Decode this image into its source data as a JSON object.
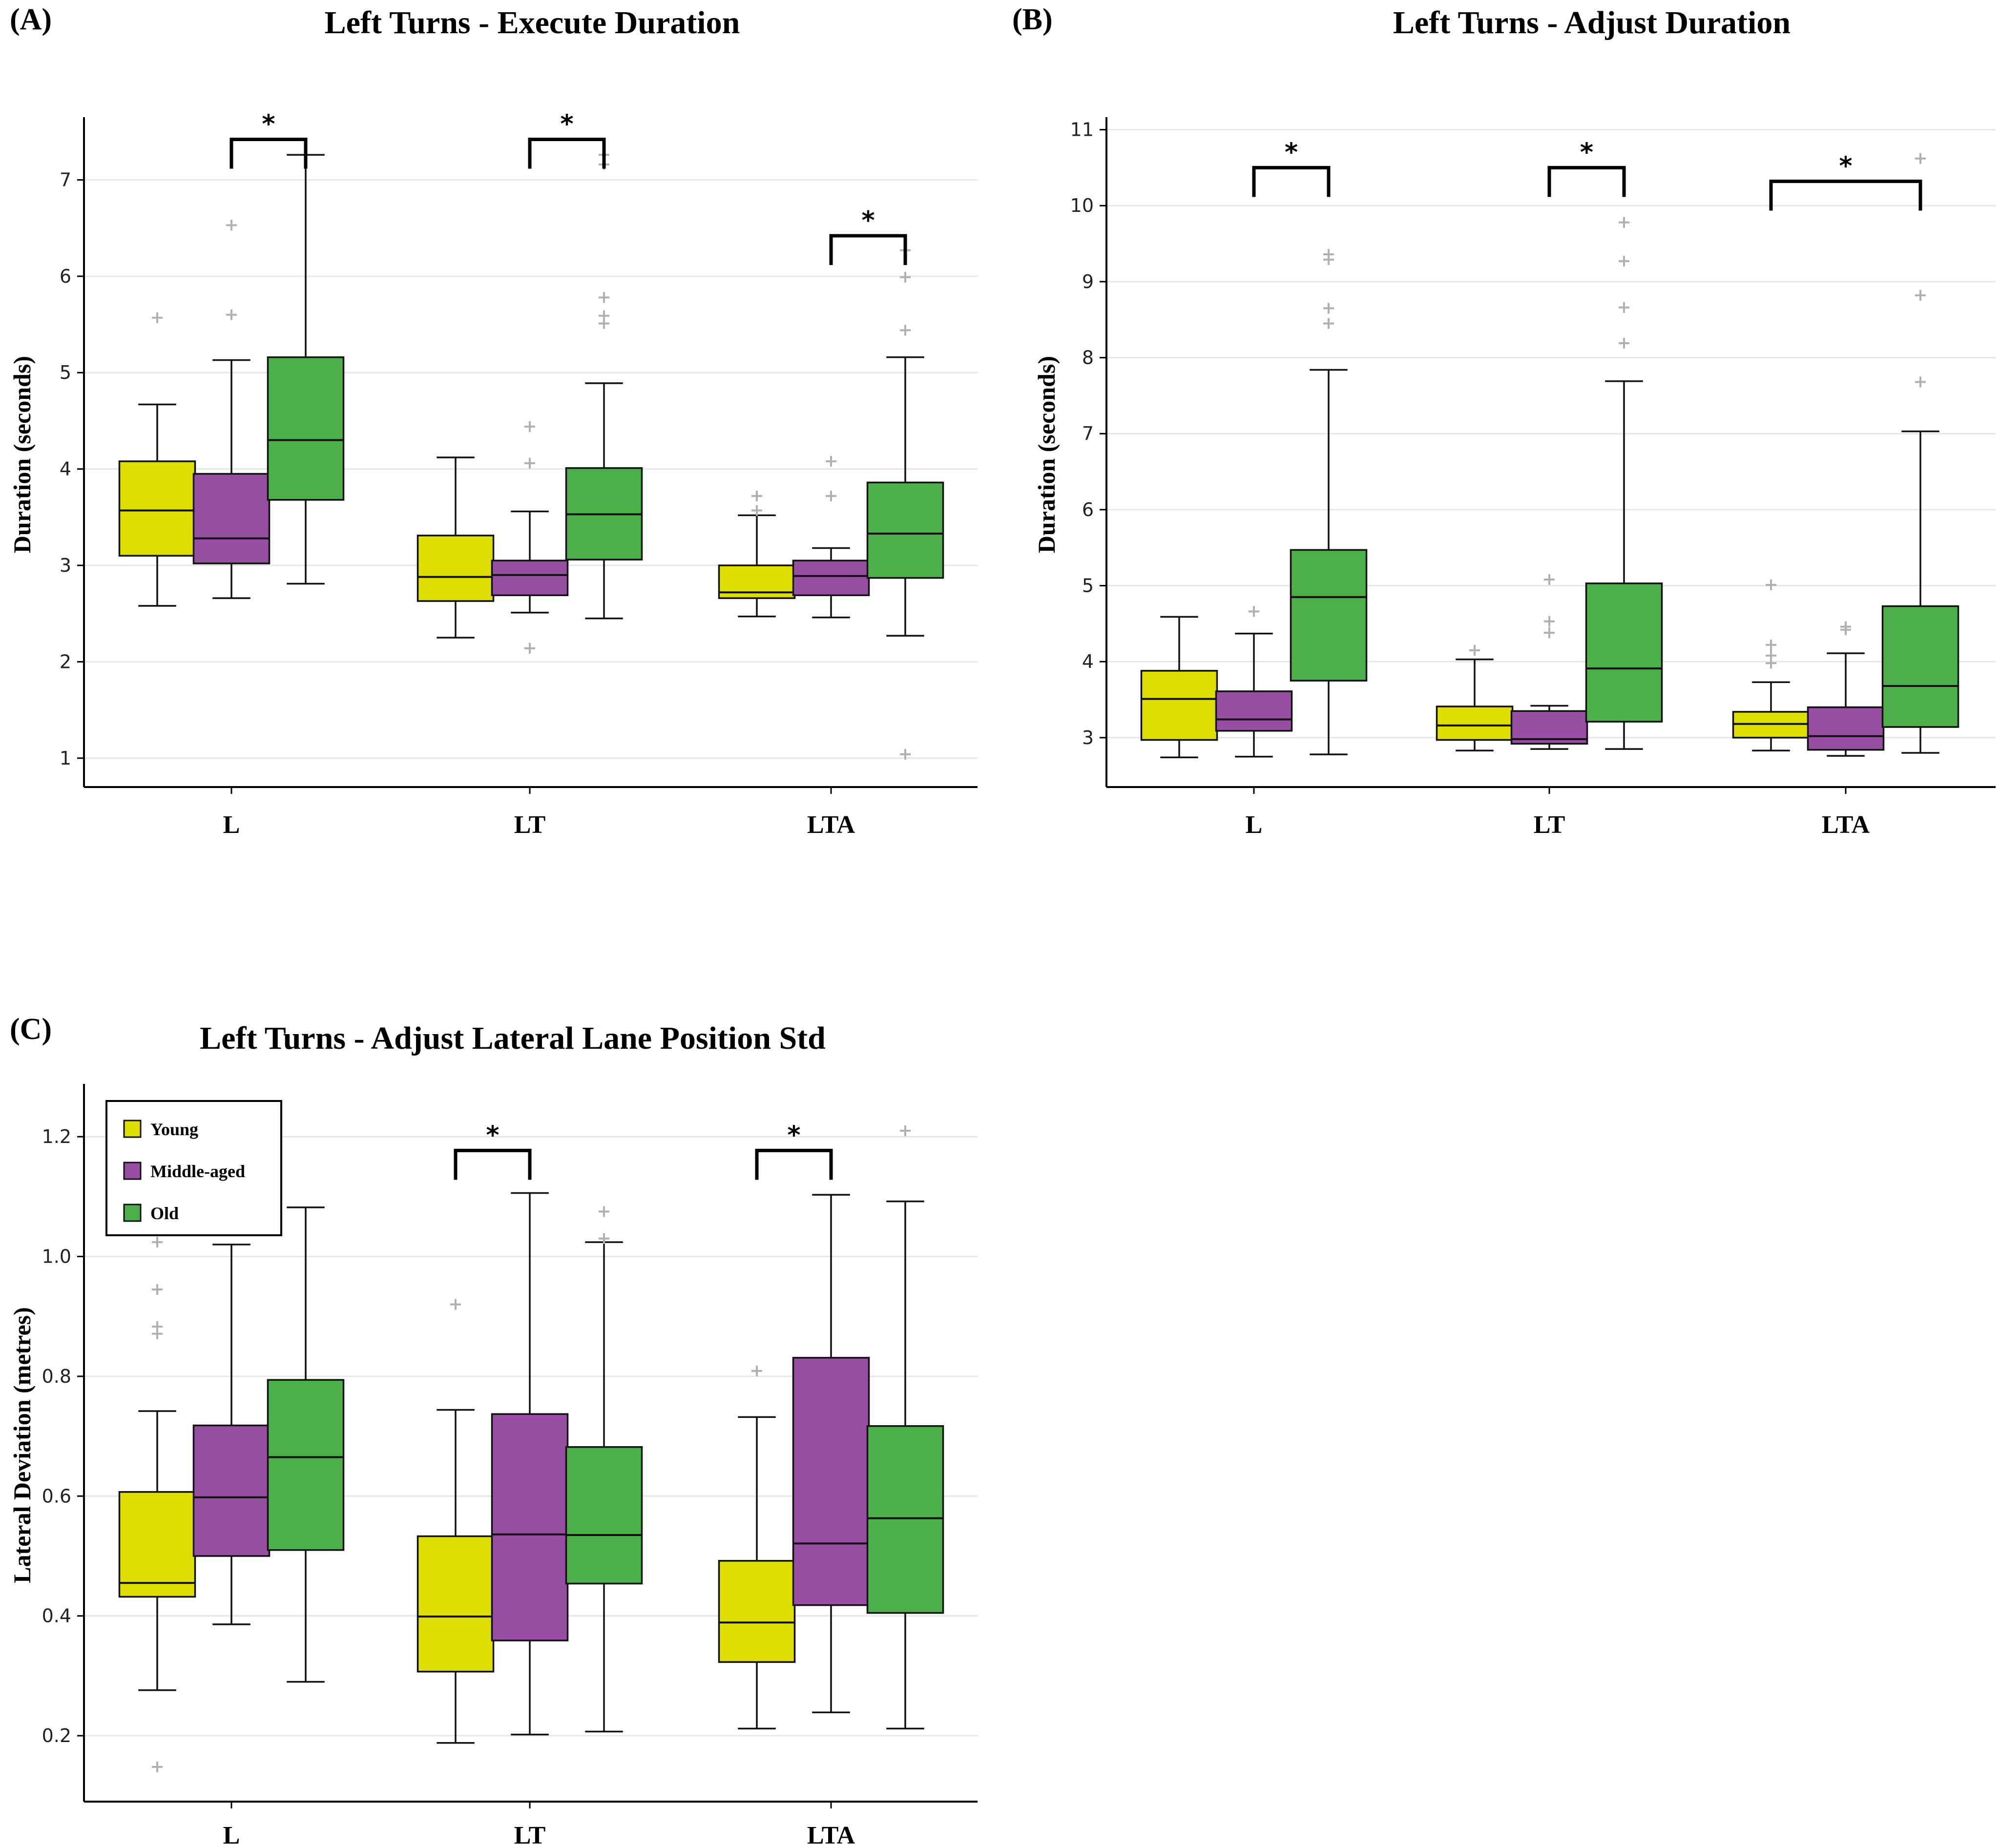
{
  "figure": {
    "legend": {
      "items": [
        "Young",
        "Middle-aged",
        "Old"
      ]
    }
  },
  "colors": {
    "young": "#dede00",
    "middle": "#984ea3",
    "old": "#4daf4a",
    "outlier": "#b0b0b0",
    "grid": "#e6e6e6"
  },
  "chart_data": [
    {
      "id": "A",
      "panel_letter": "(A)",
      "type": "box",
      "title": "Left Turns - Execute Duration",
      "xlabel": "",
      "ylabel": "Duration (seconds)",
      "ylim": [
        0.7,
        7.6
      ],
      "yticks": [
        "1",
        "2",
        "3",
        "4",
        "5",
        "6",
        "7"
      ],
      "categories": [
        "L",
        "LT",
        "LTA"
      ],
      "series": [
        {
          "name": "Young",
          "boxes": [
            {
              "whislo": 2.58,
              "q1": 3.1,
              "med": 3.57,
              "q3": 4.08,
              "whishi": 4.67,
              "fliers": [
                5.57
              ]
            },
            {
              "whislo": 2.25,
              "q1": 2.63,
              "med": 2.88,
              "q3": 3.31,
              "whishi": 4.12,
              "fliers": []
            },
            {
              "whislo": 2.47,
              "q1": 2.66,
              "med": 2.72,
              "q3": 3.0,
              "whishi": 3.52,
              "fliers": [
                3.72,
                3.57
              ]
            }
          ]
        },
        {
          "name": "Middle-aged",
          "boxes": [
            {
              "whislo": 2.66,
              "q1": 3.02,
              "med": 3.28,
              "q3": 3.95,
              "whishi": 5.13,
              "fliers": [
                5.6,
                6.53
              ]
            },
            {
              "whislo": 2.51,
              "q1": 2.69,
              "med": 2.9,
              "q3": 3.05,
              "whishi": 3.56,
              "fliers": [
                4.06,
                4.44,
                2.14
              ]
            },
            {
              "whislo": 2.46,
              "q1": 2.69,
              "med": 2.89,
              "q3": 3.05,
              "whishi": 3.18,
              "fliers": [
                3.72,
                4.08
              ]
            }
          ]
        },
        {
          "name": "Old",
          "boxes": [
            {
              "whislo": 2.81,
              "q1": 3.68,
              "med": 4.3,
              "q3": 5.16,
              "whishi": 7.26,
              "fliers": []
            },
            {
              "whislo": 2.45,
              "q1": 3.06,
              "med": 3.53,
              "q3": 4.01,
              "whishi": 4.89,
              "fliers": [
                5.51,
                5.59,
                5.78,
                7.16,
                7.26
              ]
            },
            {
              "whislo": 2.27,
              "q1": 2.87,
              "med": 3.33,
              "q3": 3.86,
              "whishi": 5.16,
              "fliers": [
                5.44,
                5.99,
                6.27,
                1.04
              ]
            }
          ]
        }
      ],
      "significance": [
        {
          "category": 0,
          "from": "Middle-aged",
          "to": "Old",
          "label": "*",
          "y": 7.42
        },
        {
          "category": 1,
          "from": "Middle-aged",
          "to": "Old",
          "label": "*",
          "y": 7.42
        },
        {
          "category": 2,
          "from": "Middle-aged",
          "to": "Old",
          "label": "*",
          "y": 6.42
        }
      ]
    },
    {
      "id": "B",
      "panel_letter": "(B)",
      "type": "box",
      "title": "Left Turns - Adjust Duration",
      "xlabel": "",
      "ylabel": "Duration (seconds)",
      "ylim": [
        2.35,
        11.1
      ],
      "yticks": [
        "3",
        "4",
        "5",
        "6",
        "7",
        "8",
        "9",
        "10",
        "11"
      ],
      "categories": [
        "L",
        "LT",
        "LTA"
      ],
      "series": [
        {
          "name": "Young",
          "boxes": [
            {
              "whislo": 2.74,
              "q1": 2.97,
              "med": 3.51,
              "q3": 3.88,
              "whishi": 4.59,
              "fliers": []
            },
            {
              "whislo": 2.83,
              "q1": 2.97,
              "med": 3.16,
              "q3": 3.41,
              "whishi": 4.03,
              "fliers": [
                4.15
              ]
            },
            {
              "whislo": 2.83,
              "q1": 3.0,
              "med": 3.18,
              "q3": 3.34,
              "whishi": 3.73,
              "fliers": [
                3.98,
                4.08,
                4.22,
                5.01
              ]
            }
          ]
        },
        {
          "name": "Middle-aged",
          "boxes": [
            {
              "whislo": 2.75,
              "q1": 3.09,
              "med": 3.24,
              "q3": 3.61,
              "whishi": 4.37,
              "fliers": [
                4.66
              ]
            },
            {
              "whislo": 2.85,
              "q1": 2.92,
              "med": 2.98,
              "q3": 3.35,
              "whishi": 3.42,
              "fliers": [
                4.38,
                4.53,
                5.08
              ]
            },
            {
              "whislo": 2.76,
              "q1": 2.84,
              "med": 3.02,
              "q3": 3.4,
              "whishi": 4.11,
              "fliers": [
                4.42,
                4.46
              ]
            }
          ]
        },
        {
          "name": "Old",
          "boxes": [
            {
              "whislo": 2.78,
              "q1": 3.75,
              "med": 4.85,
              "q3": 5.47,
              "whishi": 7.84,
              "fliers": [
                8.45,
                8.65,
                9.29,
                9.36
              ]
            },
            {
              "whislo": 2.85,
              "q1": 3.21,
              "med": 3.91,
              "q3": 5.03,
              "whishi": 7.69,
              "fliers": [
                8.19,
                8.66,
                9.27,
                9.78
              ]
            },
            {
              "whislo": 2.8,
              "q1": 3.14,
              "med": 3.68,
              "q3": 4.73,
              "whishi": 7.03,
              "fliers": [
                7.68,
                8.82,
                10.62
              ]
            }
          ]
        }
      ],
      "significance": [
        {
          "category": 0,
          "from": "Middle-aged",
          "to": "Old",
          "label": "*",
          "y": 10.5
        },
        {
          "category": 1,
          "from": "Middle-aged",
          "to": "Old",
          "label": "*",
          "y": 10.5
        },
        {
          "category": 2,
          "from": "Young",
          "to": "Old",
          "label": "*",
          "y": 10.32
        }
      ]
    },
    {
      "id": "C",
      "panel_letter": "(C)",
      "type": "box",
      "title": "Left Turns - Adjust Lateral Lane Position Std",
      "xlabel": "",
      "ylabel": "Lateral Deviation (metres)",
      "ylim": [
        0.09,
        1.28
      ],
      "yticks": [
        "0.2",
        "0.4",
        "0.6",
        "0.8",
        "1.0",
        "1.2"
      ],
      "yticks_values": [
        0.2,
        0.4,
        0.6,
        0.8,
        1.0,
        1.2
      ],
      "categories": [
        "L",
        "LT",
        "LTA"
      ],
      "legend": "top-left",
      "series": [
        {
          "name": "Young",
          "boxes": [
            {
              "whislo": 0.276,
              "q1": 0.432,
              "med": 0.455,
              "q3": 0.607,
              "whishi": 0.742,
              "fliers": [
                0.871,
                0.883,
                0.945,
                1.024,
                0.148
              ]
            },
            {
              "whislo": 0.188,
              "q1": 0.307,
              "med": 0.399,
              "q3": 0.533,
              "whishi": 0.744,
              "fliers": [
                0.92
              ]
            },
            {
              "whislo": 0.212,
              "q1": 0.323,
              "med": 0.389,
              "q3": 0.492,
              "whishi": 0.732,
              "fliers": [
                0.809
              ]
            }
          ]
        },
        {
          "name": "Middle-aged",
          "boxes": [
            {
              "whislo": 0.386,
              "q1": 0.5,
              "med": 0.598,
              "q3": 0.718,
              "whishi": 1.02,
              "fliers": []
            },
            {
              "whislo": 0.202,
              "q1": 0.359,
              "med": 0.536,
              "q3": 0.737,
              "whishi": 1.106,
              "fliers": []
            },
            {
              "whislo": 0.239,
              "q1": 0.418,
              "med": 0.521,
              "q3": 0.831,
              "whishi": 1.103,
              "fliers": []
            }
          ]
        },
        {
          "name": "Old",
          "boxes": [
            {
              "whislo": 0.29,
              "q1": 0.51,
              "med": 0.665,
              "q3": 0.794,
              "whishi": 1.082,
              "fliers": []
            },
            {
              "whislo": 0.207,
              "q1": 0.454,
              "med": 0.535,
              "q3": 0.682,
              "whishi": 1.024,
              "fliers": [
                1.03,
                1.075
              ]
            },
            {
              "whislo": 0.212,
              "q1": 0.405,
              "med": 0.563,
              "q3": 0.717,
              "whishi": 1.092,
              "fliers": [
                1.21
              ]
            }
          ]
        }
      ],
      "significance": [
        {
          "category": 1,
          "from": "Young",
          "to": "Middle-aged",
          "label": "*",
          "y": 1.177
        },
        {
          "category": 2,
          "from": "Young",
          "to": "Middle-aged",
          "label": "*",
          "y": 1.177
        }
      ]
    }
  ]
}
